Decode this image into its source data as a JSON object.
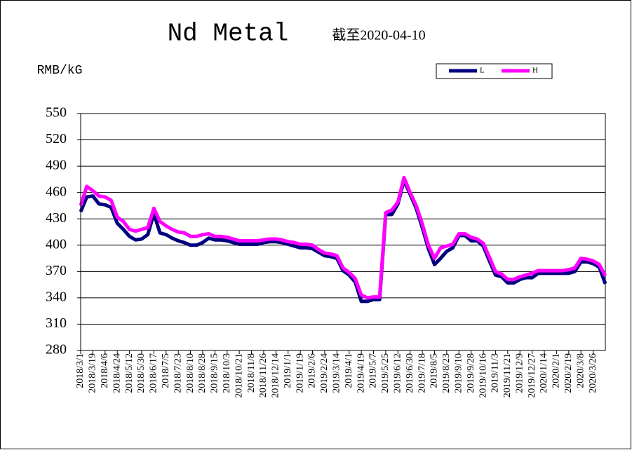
{
  "chart_data": {
    "type": "line",
    "title": "Nd Metal",
    "subtitle": "截至2020-04-10",
    "y_label": "RMB/kG",
    "categories": [
      "2018/3/1",
      null,
      "2018/3/19",
      null,
      "2018/4/6",
      null,
      "2018/4/24",
      null,
      "2018/5/12",
      null,
      "2018/5/30",
      null,
      "2018/6/17",
      null,
      "2018/7/5",
      null,
      "2018/7/23",
      null,
      "2018/8/10",
      null,
      "2018/8/28",
      null,
      "2018/9/15",
      null,
      "2018/10/3",
      null,
      "2018/10/21",
      null,
      "2018/11/8",
      null,
      "2018/11/26",
      null,
      "2018/12/14",
      null,
      "2019/1/1",
      null,
      "2019/1/19",
      null,
      "2019/2/6",
      null,
      "2019/2/24",
      null,
      "2019/3/14",
      null,
      "2019/4/1",
      null,
      "2019/4/19",
      null,
      "2019/5/7",
      null,
      "2019/5/25",
      null,
      "2019/6/12",
      null,
      "2019/6/30",
      null,
      "2019/7/18",
      null,
      "2019/8/5",
      null,
      "2019/8/23",
      null,
      "2019/9/10",
      null,
      "2019/9/28",
      null,
      "2019/10/16",
      null,
      "2019/11/3",
      null,
      "2019/11/21",
      null,
      "2019/12/9",
      null,
      "2019/12/27",
      null,
      "2020/1/14",
      null,
      "2020/2/1",
      null,
      "2020/2/19",
      null,
      "2020/3/8",
      null,
      "2020/3/26",
      null,
      null
    ],
    "series": [
      {
        "name": "L",
        "color": "#000080",
        "values": [
          438,
          455,
          456,
          447,
          446,
          443,
          425,
          418,
          410,
          406,
          407,
          412,
          436,
          414,
          412,
          408,
          405,
          403,
          400,
          400,
          403,
          408,
          406,
          406,
          405,
          403,
          401,
          401,
          401,
          401,
          403,
          404,
          404,
          403,
          401,
          399,
          397,
          397,
          396,
          392,
          388,
          387,
          385,
          371,
          366,
          358,
          336,
          336,
          338,
          338,
          435,
          435,
          447,
          474,
          458,
          442,
          420,
          396,
          378,
          385,
          393,
          397,
          411,
          411,
          405,
          405,
          399,
          382,
          366,
          364,
          357,
          357,
          361,
          363,
          363,
          368,
          368,
          368,
          368,
          368,
          368,
          370,
          381,
          381,
          379,
          375,
          356
        ]
      },
      {
        "name": "H",
        "color": "#ff00ff",
        "values": [
          445,
          467,
          462,
          456,
          455,
          451,
          432,
          427,
          418,
          416,
          418,
          420,
          442,
          427,
          422,
          418,
          415,
          414,
          410,
          410,
          412,
          413,
          410,
          410,
          409,
          407,
          405,
          405,
          405,
          405,
          406,
          407,
          407,
          406,
          404,
          403,
          401,
          401,
          400,
          395,
          391,
          390,
          388,
          374,
          369,
          362,
          343,
          340,
          341,
          341,
          437,
          440,
          449,
          477,
          460,
          445,
          424,
          400,
          385,
          397,
          399,
          401,
          413,
          413,
          409,
          407,
          402,
          386,
          370,
          367,
          361,
          361,
          364,
          366,
          368,
          371,
          371,
          371,
          371,
          371,
          372,
          374,
          385,
          384,
          382,
          378,
          365
        ]
      }
    ],
    "ylim": [
      280,
      550
    ],
    "yticks": [
      280,
      310,
      340,
      370,
      400,
      430,
      460,
      490,
      520,
      550
    ],
    "grid": true,
    "legend": "top-right"
  }
}
